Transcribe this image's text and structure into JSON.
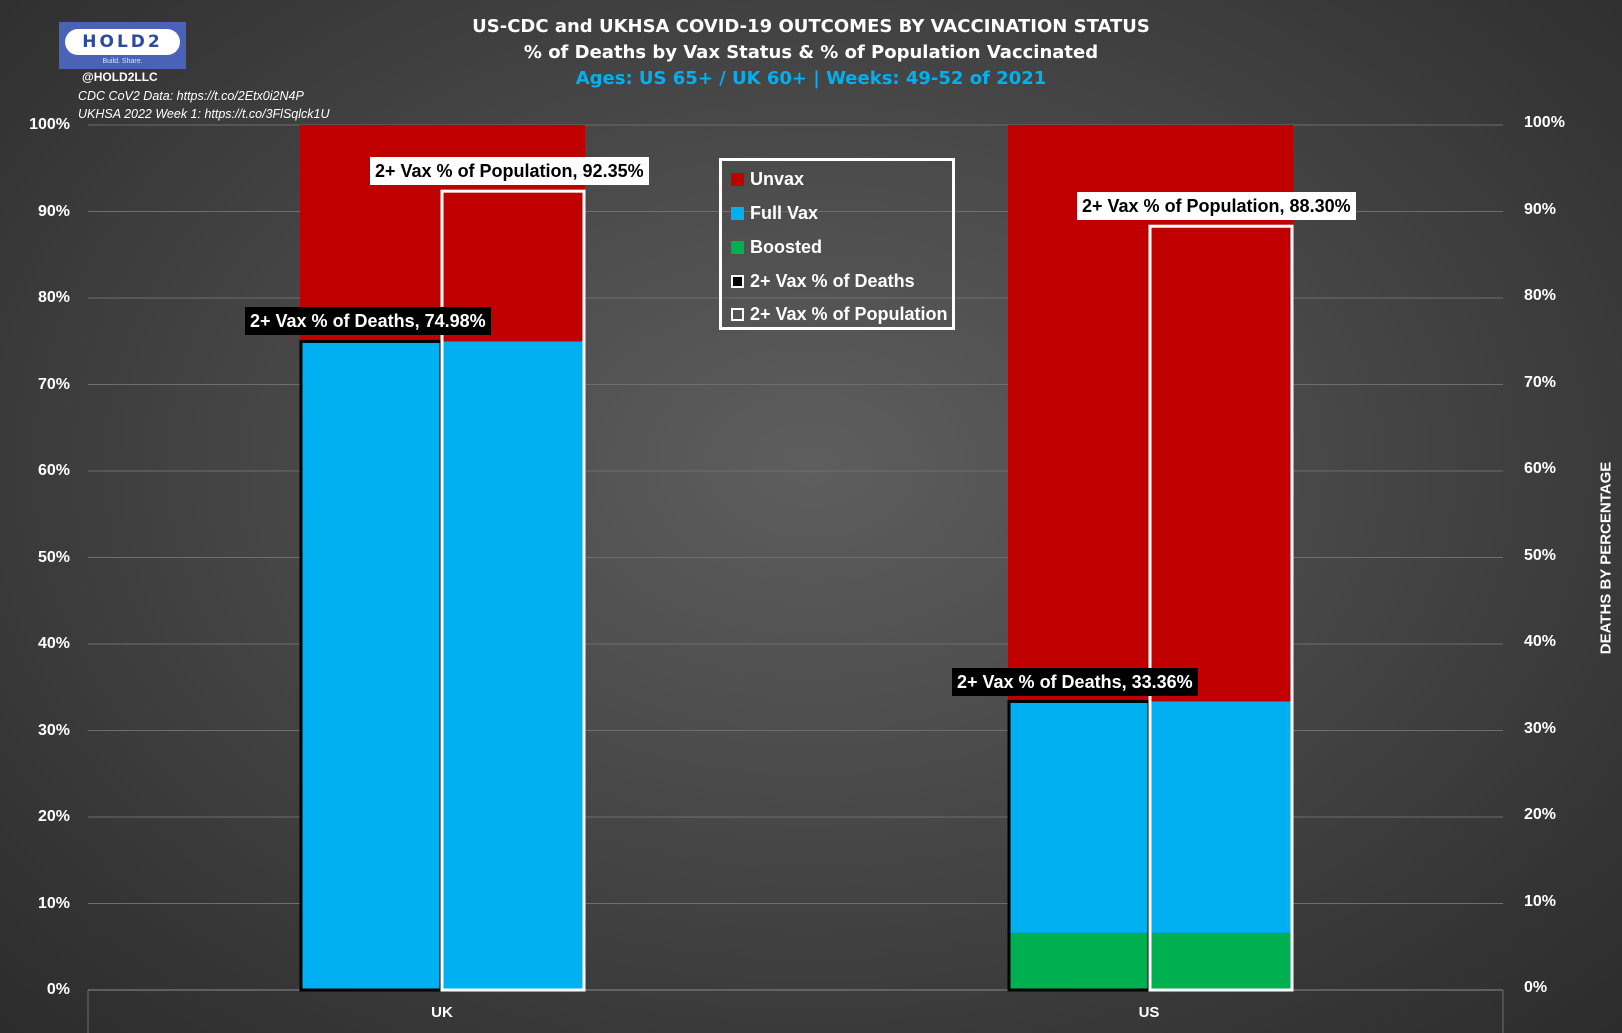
{
  "header": {
    "title": "US-CDC and UKHSA COVID-19 OUTCOMES BY VACCINATION STATUS",
    "subtitle": "% of Deaths by Vax Status & % of Population Vaccinated",
    "subtitle2": "Ages: US 65+ / UK 60+ | Weeks: 49-52 of 2021"
  },
  "logo": {
    "text": "HOLD2",
    "tagline": "Build. Share."
  },
  "handle": "@HOLD2LLC",
  "sources": [
    "CDC CoV2 Data: https://t.co/2Etx0i2N4P",
    "UKHSA 2022 Week 1: https://t.co/3FlSqlck1U"
  ],
  "colors": {
    "unvax": "#c00000",
    "full_vax": "#00b0f0",
    "boosted": "#00b050",
    "deaths_outline": "#000000",
    "population_outline": "#ffffff",
    "title_accent": "#00b0f0"
  },
  "legend": [
    {
      "label": "Unvax",
      "swatch": "unvax"
    },
    {
      "label": "Full Vax",
      "swatch": "full_vax"
    },
    {
      "label": "Boosted",
      "swatch": "boosted"
    },
    {
      "label": "2+ Vax % of Deaths",
      "swatch": "deaths_outline"
    },
    {
      "label": "2+ Vax % of Population",
      "swatch": "population_outline"
    }
  ],
  "chart_data": {
    "type": "bar",
    "stacked": true,
    "categories": [
      "UK",
      "US"
    ],
    "series": [
      {
        "name": "Boosted",
        "values": [
          0,
          6.6
        ]
      },
      {
        "name": "Full Vax",
        "values": [
          74.98,
          26.76
        ]
      },
      {
        "name": "Unvax",
        "values": [
          25.02,
          66.64
        ]
      }
    ],
    "overlays": [
      {
        "name": "2+ Vax % of Deaths",
        "values": [
          74.98,
          33.36
        ]
      },
      {
        "name": "2+ Vax % of Population",
        "values": [
          92.35,
          88.3
        ]
      }
    ],
    "data_labels": {
      "deaths": [
        "2+ Vax % of Deaths, 74.98%",
        "2+ Vax % of Deaths, 33.36%"
      ],
      "population": [
        "2+ Vax % of Population, 92.35%",
        "2+ Vax % of Population, 88.30%"
      ]
    },
    "y_ticks": [
      "0%",
      "10%",
      "20%",
      "30%",
      "40%",
      "50%",
      "60%",
      "70%",
      "80%",
      "90%",
      "100%"
    ],
    "ylim": [
      0,
      100
    ],
    "y2label": "DEATHS BY PERCENTAGE",
    "grid": true,
    "legend_position": "top-center"
  }
}
